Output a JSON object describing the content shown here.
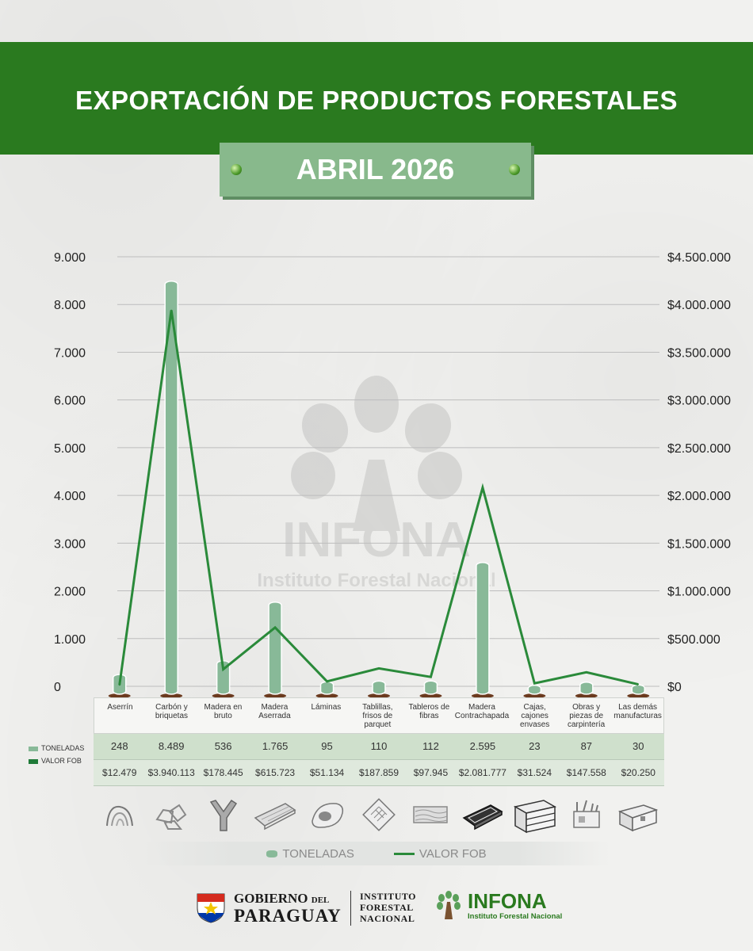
{
  "header": {
    "title": "EXPORTACIÓN DE PRODUCTOS FORESTALES",
    "month": "ABRIL 2026"
  },
  "watermark": {
    "name": "INFONA",
    "subtitle": "Instituto Forestal Nacional"
  },
  "chart_data": {
    "type": "bar",
    "categories": [
      "Aserrín",
      "Carbón y briquetas",
      "Madera en bruto",
      "Madera Aserrada",
      "Láminas",
      "Tablillas, frisos de parquet",
      "Tableros de fibras",
      "Madera Contrachapada",
      "Cajas, cajones envases",
      "Obras y piezas de carpintería",
      "Las demás manufacturas"
    ],
    "series": [
      {
        "name": "TONELADAS",
        "type": "bar",
        "axis": "left",
        "values": [
          248,
          8489,
          536,
          1765,
          95,
          110,
          112,
          2595,
          23,
          87,
          30
        ],
        "labels": [
          "248",
          "8.489",
          "536",
          "1.765",
          "95",
          "110",
          "112",
          "2.595",
          "23",
          "87",
          "30"
        ]
      },
      {
        "name": "VALOR FOB",
        "type": "line",
        "axis": "right",
        "values": [
          12479,
          3940113,
          178445,
          615723,
          51134,
          187859,
          97945,
          2081777,
          31524,
          147558,
          20250
        ],
        "labels": [
          "$12.479",
          "$3.940.113",
          "$178.445",
          "$615.723",
          "$51.134",
          "$187.859",
          "$97.945",
          "$2.081.777",
          "$31.524",
          "$147.558",
          "$20.250"
        ]
      }
    ],
    "y_left": {
      "min": 0,
      "max": 9000,
      "ticks": [
        0,
        1000,
        2000,
        3000,
        4000,
        5000,
        6000,
        7000,
        8000,
        9000
      ],
      "tick_labels": [
        "0",
        "1.000",
        "2.000",
        "3.000",
        "4.000",
        "5.000",
        "6.000",
        "7.000",
        "8.000",
        "9.000"
      ]
    },
    "y_right": {
      "min": 0,
      "max": 4500000,
      "ticks": [
        0,
        500000,
        1000000,
        1500000,
        2000000,
        2500000,
        3000000,
        3500000,
        4000000,
        4500000
      ],
      "tick_labels": [
        "$0",
        "$500.000",
        "$1.000.000",
        "$1.500.000",
        "$2.000.000",
        "$2.500.000",
        "$3.000.000",
        "$3.500.000",
        "$4.000.000",
        "$4.500.000"
      ]
    },
    "grid": true,
    "legend": "bottom",
    "colors": {
      "bar": "#88b998",
      "line": "#2a8a3a",
      "bar_base": "#6b3a1e"
    }
  },
  "table_legend": {
    "ton": "TONELADAS",
    "fob": "VALOR FOB"
  },
  "legend": {
    "ton": "TONELADAS",
    "fob": "VALOR FOB"
  },
  "icons": [
    "sawdust-icon",
    "charcoal-icon",
    "raw-wood-icon",
    "sawn-wood-icon",
    "veneer-icon",
    "parquet-icon",
    "fiberboard-icon",
    "plywood-icon",
    "crate-icon",
    "carpentry-icon",
    "chest-icon"
  ],
  "footer": {
    "gov_line1": "GOBIERNO",
    "gov_del": "DEL",
    "gov_line2": "PARAGUAY",
    "inst_lines": [
      "INSTITUTO",
      "FORESTAL",
      "NACIONAL"
    ],
    "infona_name": "INFONA",
    "infona_sub": "Instituto Forestal Nacional"
  }
}
